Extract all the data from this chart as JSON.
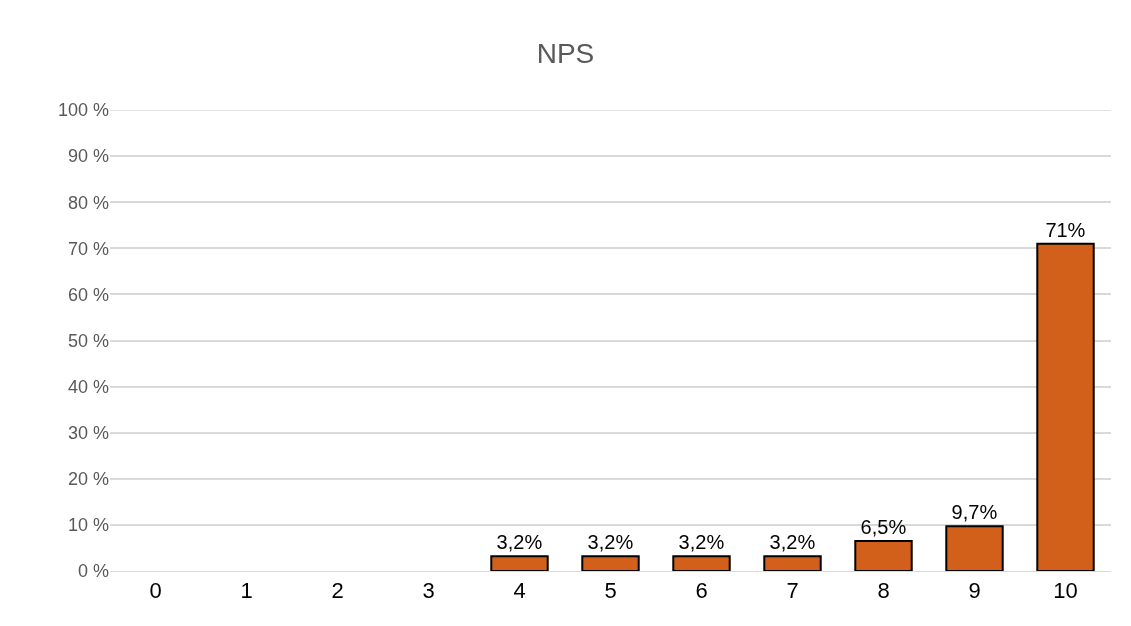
{
  "chart_data": {
    "type": "bar",
    "title": "NPS",
    "categories": [
      "0",
      "1",
      "2",
      "3",
      "4",
      "5",
      "6",
      "7",
      "8",
      "9",
      "10"
    ],
    "values": [
      0,
      0,
      0,
      0,
      3.2,
      3.2,
      3.2,
      3.2,
      6.5,
      9.7,
      71
    ],
    "value_labels": [
      null,
      null,
      null,
      null,
      "3,2%",
      "3,2%",
      "3,2%",
      "3,2%",
      "6,5%",
      "9,7%",
      "71%"
    ],
    "color": "#d2601a",
    "ylim": [
      0,
      100
    ],
    "yticks": [
      {
        "value": 0,
        "label": "0 %"
      },
      {
        "value": 10,
        "label": "10 %"
      },
      {
        "value": 20,
        "label": "20 %"
      },
      {
        "value": 30,
        "label": "30 %"
      },
      {
        "value": 40,
        "label": "40 %"
      },
      {
        "value": 50,
        "label": "50 %"
      },
      {
        "value": 60,
        "label": "60 %"
      },
      {
        "value": 70,
        "label": "70 %"
      },
      {
        "value": 80,
        "label": "80 %"
      },
      {
        "value": 90,
        "label": "90 %"
      },
      {
        "value": 100,
        "label": "100 %"
      }
    ],
    "grid": "y",
    "legend": false
  }
}
